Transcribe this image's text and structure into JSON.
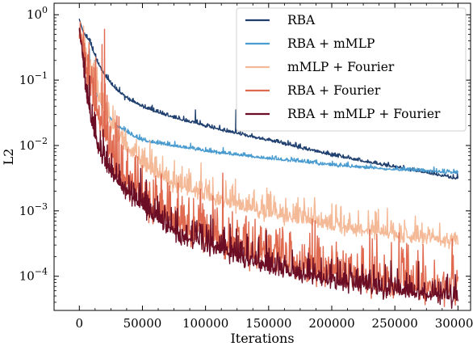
{
  "chart_data": {
    "type": "line",
    "xlabel": "Iterations",
    "ylabel": "L2",
    "yscale": "log",
    "xlim": [
      -20000,
      310000
    ],
    "ylim": [
      3e-05,
      1.5
    ],
    "x_ticks": [
      0,
      50000,
      100000,
      150000,
      200000,
      250000,
      300000
    ],
    "x_tick_labels": [
      "0",
      "50000",
      "100000",
      "150000",
      "200000",
      "250000",
      "300000"
    ],
    "y_ticks": [
      0.0001,
      0.001,
      0.01,
      0.1,
      1
    ],
    "y_tick_base": "10",
    "y_tick_exponents": [
      "−4",
      "−3",
      "−2",
      "−1",
      "0"
    ],
    "grid": false,
    "legend_position": "top-right",
    "series": [
      {
        "name": "RBA",
        "color": "#1f3f6e",
        "noise": 0.03,
        "spikes": [
          [
            36000,
            0.05
          ],
          [
            92000,
            0.035
          ],
          [
            124000,
            0.035
          ]
        ],
        "x": [
          0,
          3000,
          8000,
          12000,
          15000,
          20000,
          25000,
          30000,
          40000,
          50000,
          60000,
          80000,
          100000,
          120000,
          150000,
          180000,
          200000,
          230000,
          260000,
          300000
        ],
        "y": [
          0.85,
          0.55,
          0.4,
          0.25,
          0.18,
          0.12,
          0.09,
          0.07,
          0.05,
          0.04,
          0.033,
          0.025,
          0.02,
          0.016,
          0.012,
          0.0088,
          0.0072,
          0.0055,
          0.0043,
          0.0031
        ]
      },
      {
        "name": "RBA + mMLP",
        "color": "#4a9cd0",
        "noise": 0.03,
        "spikes": [
          [
            8000,
            0.3
          ],
          [
            12000,
            0.2
          ]
        ],
        "x": [
          0,
          3000,
          8000,
          12000,
          16000,
          20000,
          25000,
          30000,
          40000,
          50000,
          60000,
          80000,
          100000,
          120000,
          150000,
          180000,
          200000,
          250000,
          300000
        ],
        "y": [
          0.6,
          0.35,
          0.15,
          0.08,
          0.05,
          0.035,
          0.025,
          0.02,
          0.015,
          0.012,
          0.011,
          0.0095,
          0.0083,
          0.0074,
          0.0063,
          0.0055,
          0.005,
          0.0043,
          0.0038
        ]
      },
      {
        "name": "mMLP + Fourier",
        "color": "#f4b997",
        "noise": 0.18,
        "spikes": [],
        "x": [
          0,
          3000,
          6000,
          10000,
          15000,
          20000,
          25000,
          30000,
          40000,
          50000,
          60000,
          80000,
          100000,
          120000,
          150000,
          180000,
          200000,
          250000,
          300000
        ],
        "y": [
          0.6,
          0.4,
          0.22,
          0.12,
          0.06,
          0.032,
          0.022,
          0.016,
          0.009,
          0.0055,
          0.0038,
          0.0024,
          0.0017,
          0.0013,
          0.00093,
          0.00069,
          0.0006,
          0.00044,
          0.00032
        ]
      },
      {
        "name": "RBA + Fourier",
        "color": "#e06a4f",
        "noise": 0.38,
        "spikes": [
          [
            18000,
            0.35
          ],
          [
            20000,
            0.6
          ]
        ],
        "x": [
          0,
          3000,
          6000,
          10000,
          15000,
          20000,
          25000,
          30000,
          40000,
          50000,
          60000,
          80000,
          100000,
          120000,
          150000,
          180000,
          200000,
          250000,
          300000
        ],
        "y": [
          0.5,
          0.3,
          0.15,
          0.07,
          0.03,
          0.015,
          0.008,
          0.005,
          0.0028,
          0.0017,
          0.0011,
          0.0006,
          0.0004,
          0.0003,
          0.0002,
          0.00014,
          0.00011,
          8e-05,
          6e-05
        ]
      },
      {
        "name": "RBA + mMLP + Fourier",
        "color": "#6b0d24",
        "noise": 0.22,
        "spikes": [],
        "x": [
          0,
          2000,
          4000,
          6000,
          8000,
          10000,
          15000,
          20000,
          25000,
          30000,
          40000,
          50000,
          60000,
          80000,
          100000,
          120000,
          150000,
          180000,
          200000,
          250000,
          300000
        ],
        "y": [
          0.6,
          0.3,
          0.12,
          0.06,
          0.035,
          0.02,
          0.01,
          0.006,
          0.004,
          0.003,
          0.0018,
          0.0012,
          0.0008,
          0.00045,
          0.0003,
          0.00022,
          0.00014,
          0.0001,
          8.5e-05,
          6.2e-05,
          4.8e-05
        ]
      }
    ]
  }
}
